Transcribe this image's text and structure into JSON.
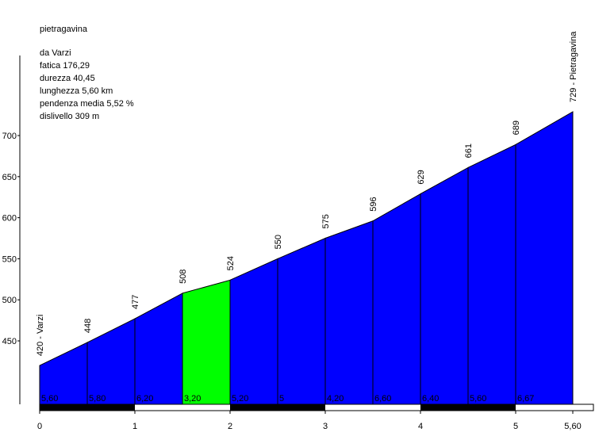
{
  "chart_data": {
    "type": "profile",
    "title": "pietragavina",
    "info_lines": [
      "da Varzi",
      "fatica 176,29",
      "durezza 40,45",
      "lunghezza 5,60 km",
      "pendenza media 5,52 %",
      "dislivello 309 m"
    ],
    "x": [
      0,
      0.5,
      1,
      1.5,
      2,
      2.5,
      3,
      3.5,
      4,
      4.5,
      5,
      5.6
    ],
    "values": [
      420,
      448,
      477,
      508,
      524,
      550,
      575,
      596,
      629,
      661,
      689,
      729
    ],
    "value_labels": [
      "420 - Varzi",
      "448",
      "477",
      "508",
      "524",
      "550",
      "575",
      "596",
      "629",
      "661",
      "689",
      "729 - Pietragavina"
    ],
    "gradients": [
      5.6,
      5.8,
      6.2,
      3.2,
      5.2,
      5,
      4.2,
      6.6,
      6.4,
      5.6,
      6.67
    ],
    "gradient_labels": [
      "5,60",
      "5,80",
      "6,20",
      "3,20",
      "5,20",
      "5",
      "4,20",
      "6,60",
      "6,40",
      "5,60",
      "6,67"
    ],
    "segment_colors": [
      "#0000ff",
      "#0000ff",
      "#0000ff",
      "#00ff00",
      "#0000ff",
      "#0000ff",
      "#0000ff",
      "#0000ff",
      "#0000ff",
      "#0000ff",
      "#0000ff"
    ],
    "xlim": [
      0,
      5.6
    ],
    "xticks": [
      0,
      1,
      2,
      3,
      4,
      5,
      {
        "value": 5.6,
        "label": "5,60"
      }
    ],
    "ylim": [
      372.8,
      797.5
    ],
    "yticks": [
      450,
      500,
      550,
      600,
      650,
      700
    ]
  }
}
